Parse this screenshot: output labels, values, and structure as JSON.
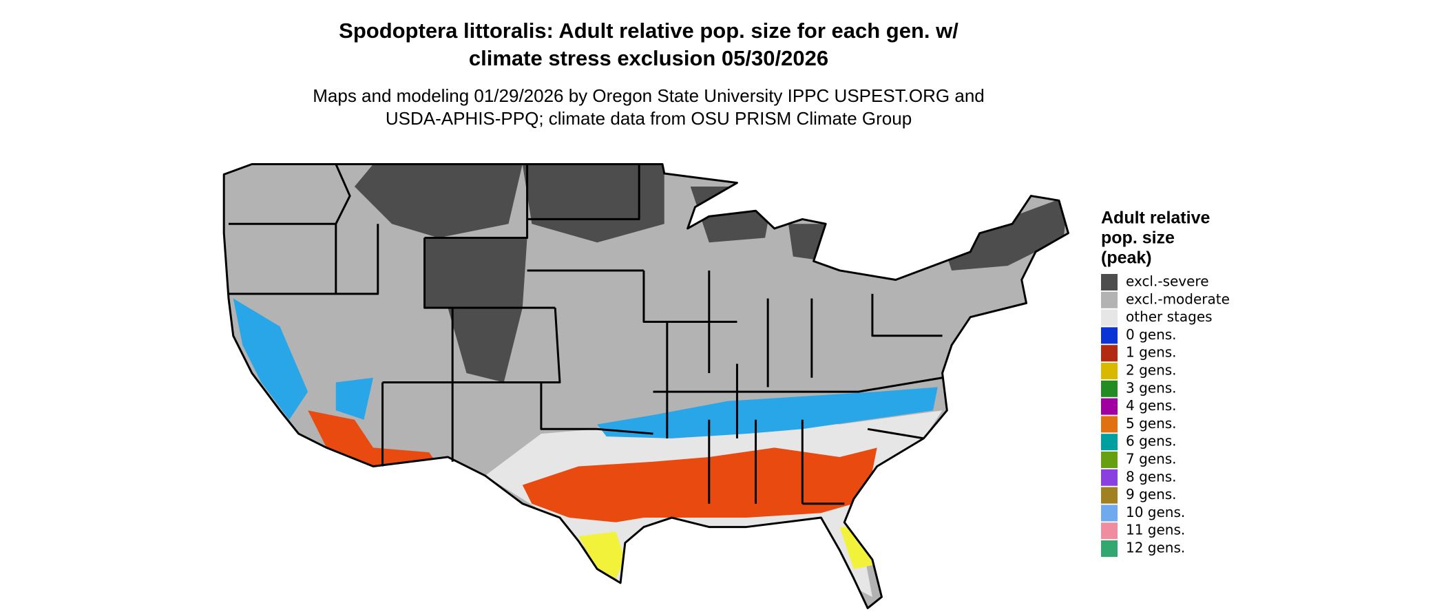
{
  "title_lines": [
    "Spodoptera littoralis: Adult relative pop. size for each gen. w/",
    "climate stress exclusion 05/30/2026"
  ],
  "subtitle_lines": [
    "Maps and modeling 01/29/2026 by Oregon State University IPPC USPEST.ORG and",
    "USDA-APHIS-PPQ; climate data from OSU PRISM Climate Group"
  ],
  "legend": {
    "title_lines": [
      "Adult relative",
      "pop. size",
      "(peak)"
    ],
    "items": [
      {
        "label": "excl.-severe",
        "color": "#4d4d4d"
      },
      {
        "label": "excl.-moderate",
        "color": "#b3b3b3"
      },
      {
        "label": "other stages",
        "color": "#e6e6e6"
      },
      {
        "label": "0 gens.",
        "color": "#0a34d6"
      },
      {
        "label": "1 gens.",
        "color": "#b22a12"
      },
      {
        "label": "2 gens.",
        "color": "#d9b800"
      },
      {
        "label": "3 gens.",
        "color": "#228b22"
      },
      {
        "label": "4 gens.",
        "color": "#a000a0"
      },
      {
        "label": "5 gens.",
        "color": "#e07010"
      },
      {
        "label": "6 gens.",
        "color": "#00a0a0"
      },
      {
        "label": "7 gens.",
        "color": "#66a010"
      },
      {
        "label": "8 gens.",
        "color": "#8a3fe0"
      },
      {
        "label": "9 gens.",
        "color": "#a08020"
      },
      {
        "label": "10 gens.",
        "color": "#6faaee"
      },
      {
        "label": "11 gens.",
        "color": "#f08ca0"
      },
      {
        "label": "12 gens.",
        "color": "#30a870"
      }
    ]
  }
}
